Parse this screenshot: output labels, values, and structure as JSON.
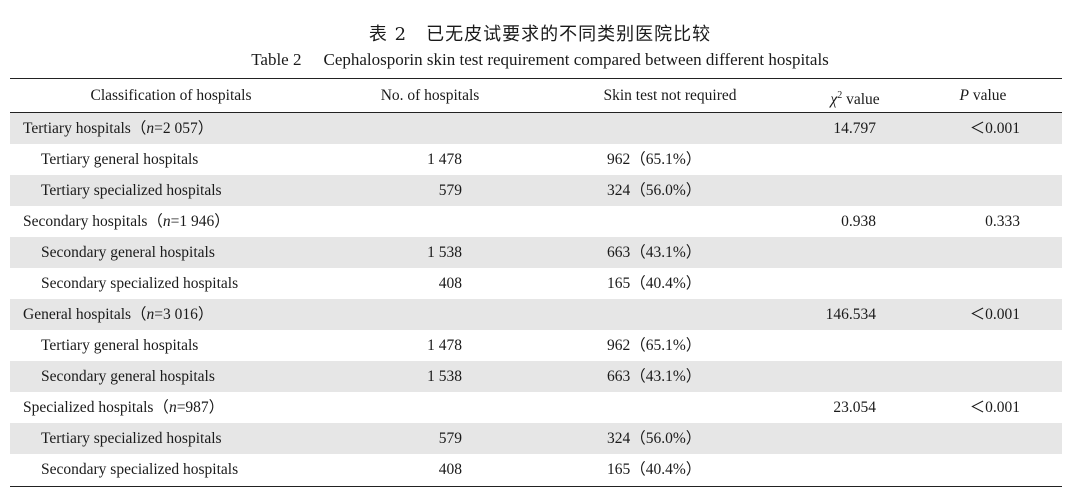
{
  "title_cn": "表 2　已无皮试要求的不同类别医院比较",
  "title_en_num": "Table 2",
  "title_en_text": "Cephalosporin skin test requirement compared between different hospitals",
  "headers": {
    "classification": "Classification of hospitals",
    "num": "No. of hospitals",
    "skin": "Skin test not required",
    "chi_symbol": "χ",
    "chi_sup": "2",
    "chi_suffix": " value",
    "p_symbol": "P",
    "p_suffix": " value"
  },
  "rows": [
    {
      "type": "group",
      "label_pre": "Tertiary hospitals（",
      "n_symbol": "n",
      "label_post": "=2 057）",
      "num": "",
      "skin": "",
      "chi": "14.797",
      "p": "＜0.001"
    },
    {
      "type": "sub",
      "label": "Tertiary general hospitals",
      "num": "1 478",
      "skin": "962（65.1%）",
      "chi": "",
      "p": ""
    },
    {
      "type": "sub",
      "label": "Tertiary specialized hospitals",
      "num": "579",
      "skin": "324（56.0%）",
      "chi": "",
      "p": ""
    },
    {
      "type": "group",
      "label_pre": "Secondary hospitals（",
      "n_symbol": "n",
      "label_post": "=1 946）",
      "num": "",
      "skin": "",
      "chi": "0.938",
      "p": "0.333"
    },
    {
      "type": "sub",
      "label": "Secondary general hospitals",
      "num": "1 538",
      "skin": "663（43.1%）",
      "chi": "",
      "p": ""
    },
    {
      "type": "sub",
      "label": "Secondary specialized hospitals",
      "num": "408",
      "skin": "165（40.4%）",
      "chi": "",
      "p": ""
    },
    {
      "type": "group",
      "label_pre": "General hospitals（",
      "n_symbol": "n",
      "label_post": "=3 016）",
      "num": "",
      "skin": "",
      "chi": "146.534",
      "p": "＜0.001"
    },
    {
      "type": "sub",
      "label": "Tertiary general hospitals",
      "num": "1 478",
      "skin": "962（65.1%）",
      "chi": "",
      "p": ""
    },
    {
      "type": "sub",
      "label": "Secondary general hospitals",
      "num": "1 538",
      "skin": "663（43.1%）",
      "chi": "",
      "p": ""
    },
    {
      "type": "group",
      "label_pre": "Specialized hospitals（",
      "n_symbol": "n",
      "label_post": "=987）",
      "num": "",
      "skin": "",
      "chi": "23.054",
      "p": "＜0.001"
    },
    {
      "type": "sub",
      "label": "Tertiary specialized hospitals",
      "num": "579",
      "skin": "324（56.0%）",
      "chi": "",
      "p": ""
    },
    {
      "type": "sub",
      "label": "Secondary specialized hospitals",
      "num": "408",
      "skin": "165（40.4%）",
      "chi": "",
      "p": ""
    }
  ],
  "colors": {
    "shade": "#e6e6e6",
    "rule": "#222222",
    "text": "#1a1a1a"
  }
}
